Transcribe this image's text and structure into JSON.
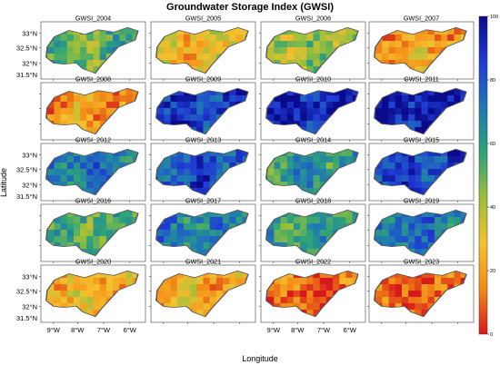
{
  "chart_data": {
    "type": "heatmap",
    "title": "Groundwater Storage Index (GWSI)",
    "xlabel": "Longitude",
    "ylabel": "Latitude",
    "colorbar": {
      "min": 0,
      "max": 100,
      "ticks": [
        "0",
        "20",
        "40",
        "60",
        "80",
        "100"
      ],
      "colors": [
        "#d7191c",
        "#f28c16",
        "#f6c02e",
        "#9cbf3a",
        "#2ea378",
        "#1f78b4",
        "#1f3bd4",
        "#0a0a8c"
      ]
    },
    "x_ticks": [
      "9°W",
      "8°W",
      "7°W",
      "6°W"
    ],
    "y_ticks": [
      "33°N",
      "32.5°N",
      "32°N",
      "31.5°N"
    ],
    "panels": [
      {
        "name": "GWSI_2004",
        "mean": 52
      },
      {
        "name": "GWSI_2005",
        "mean": 28
      },
      {
        "name": "GWSI_2006",
        "mean": 45
      },
      {
        "name": "GWSI_2007",
        "mean": 22
      },
      {
        "name": "GWSI_2008",
        "mean": 18
      },
      {
        "name": "GWSI_2009",
        "mean": 85
      },
      {
        "name": "GWSI_2010",
        "mean": 92
      },
      {
        "name": "GWSI_2011",
        "mean": 95
      },
      {
        "name": "GWSI_2012",
        "mean": 72
      },
      {
        "name": "GWSI_2013",
        "mean": 82
      },
      {
        "name": "GWSI_2014",
        "mean": 62
      },
      {
        "name": "GWSI_2015",
        "mean": 85
      },
      {
        "name": "GWSI_2016",
        "mean": 55
      },
      {
        "name": "GWSI_2017",
        "mean": 68
      },
      {
        "name": "GWSI_2018",
        "mean": 58
      },
      {
        "name": "GWSI_2019",
        "mean": 72
      },
      {
        "name": "GWSI_2020",
        "mean": 26
      },
      {
        "name": "GWSI_2021",
        "mean": 24
      },
      {
        "name": "GWSI_2022",
        "mean": 8
      },
      {
        "name": "GWSI_2023",
        "mean": 9
      }
    ]
  }
}
